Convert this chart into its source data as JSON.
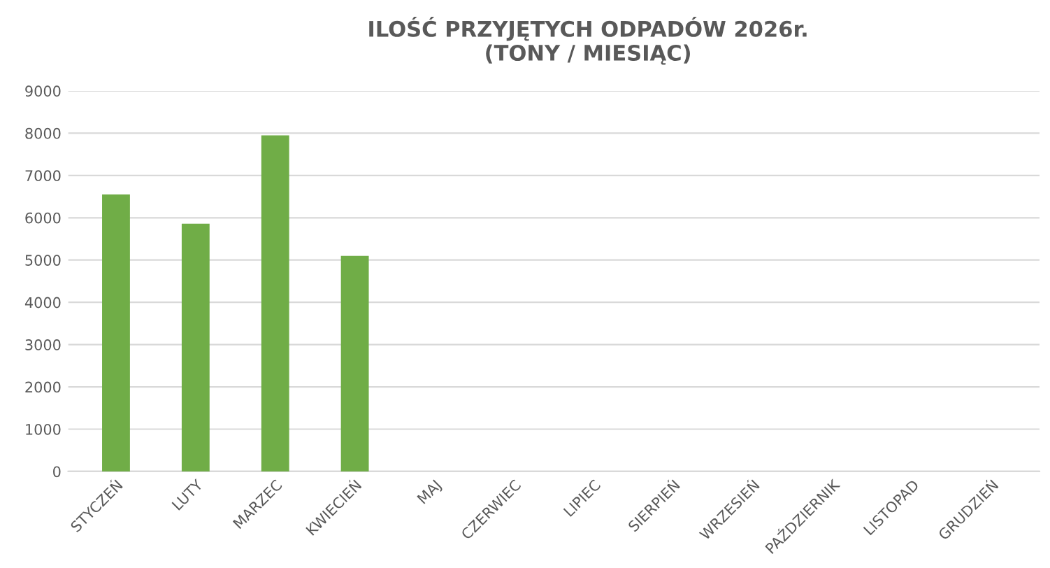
{
  "chart_data": {
    "type": "bar",
    "title": "ILOŚĆ PRZYJĘTYCH ODPADÓW 2026r.\n(TONY / MIESIĄC)",
    "categories": [
      "STYCZEŃ",
      "LUTY",
      "MARZEC",
      "KWIECIEŃ",
      "MAJ",
      "CZERWIEC",
      "LIPIEC",
      "SIERPIEŃ",
      "WRZESIEŃ",
      "PAŹDZIERNIK",
      "LISTOPAD",
      "GRUDZIEŃ"
    ],
    "values": [
      6550,
      5860,
      7950,
      5100,
      null,
      null,
      null,
      null,
      null,
      null,
      null,
      null
    ],
    "color": "#70ad47",
    "ylim": [
      0,
      9000
    ],
    "yticks": [
      0,
      1000,
      2000,
      3000,
      4000,
      5000,
      6000,
      7000,
      8000,
      9000
    ],
    "grid": "y"
  }
}
